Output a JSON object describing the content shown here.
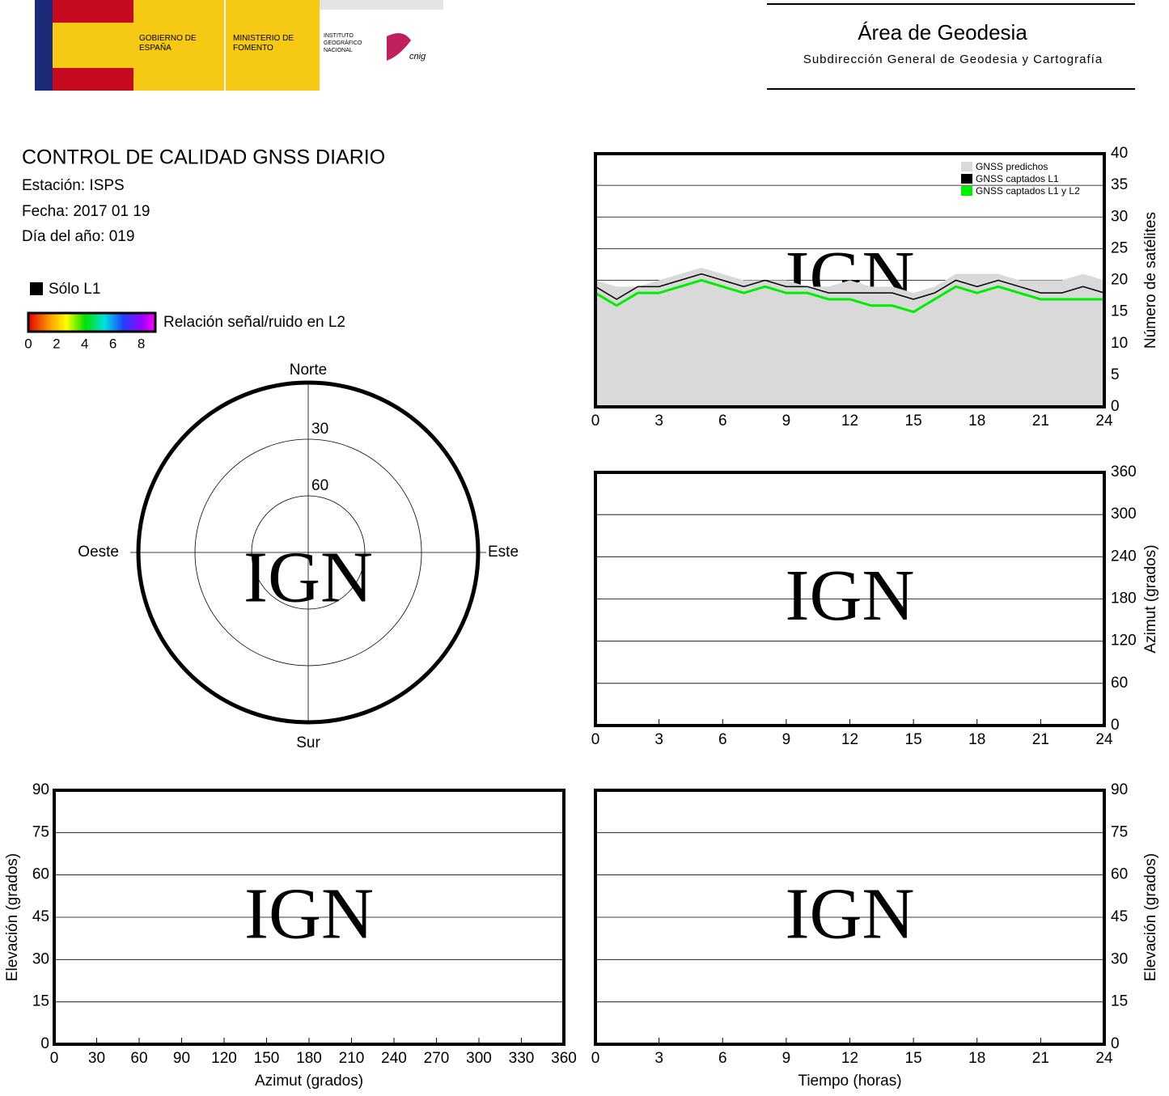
{
  "header": {
    "gov": "GOBIERNO DE ESPAÑA",
    "ministry": "MINISTERIO DE FOMENTO",
    "institute": "INSTITUTO GEOGRÁFICO NACIONAL",
    "cnig": "cnig",
    "area": "Área de Geodesia",
    "subarea": "Subdirección General de Geodesia y Cartografía"
  },
  "report": {
    "title": "CONTROL DE CALIDAD GNSS DIARIO",
    "station": "Estación: ISPS",
    "date": "Fecha: 2017 01 19",
    "doy": "Día del año: 019",
    "l1_only": "Sólo L1",
    "colorbar": {
      "label": "Relación señal/ruido en L2",
      "lim": [
        0,
        9
      ],
      "ticks": [
        0,
        2,
        4,
        6,
        8
      ]
    }
  },
  "chart_data": [
    {
      "type": "polar",
      "north": "Norte",
      "south": "Sur",
      "west": "Oeste",
      "east": "Este",
      "rlim": [
        90,
        0
      ],
      "rticks": [
        30,
        60
      ],
      "watermark": "IGN"
    },
    {
      "type": "line",
      "ylabel": "Número de satélites",
      "watermark": "IGN",
      "x": [
        0,
        1,
        2,
        3,
        4,
        5,
        6,
        7,
        8,
        9,
        10,
        11,
        12,
        13,
        14,
        15,
        16,
        17,
        18,
        19,
        20,
        21,
        22,
        23,
        24
      ],
      "xlim": [
        0,
        24
      ],
      "xticks": [
        0,
        3,
        6,
        9,
        12,
        15,
        18,
        21,
        24
      ],
      "ylim": [
        0,
        40
      ],
      "yticks": [
        0,
        5,
        10,
        15,
        20,
        25,
        30,
        35,
        40
      ],
      "grid": true,
      "series": [
        {
          "name": "GNSS predichos",
          "color": "#d9d9d9",
          "values": [
            20,
            19,
            19,
            20,
            21,
            22,
            21,
            20,
            20,
            20,
            19,
            19,
            20,
            19,
            19,
            18,
            19,
            21,
            21,
            21,
            20,
            20,
            20,
            21,
            20
          ]
        },
        {
          "name": "GNSS captados L1",
          "color": "#000000",
          "values": [
            19,
            17,
            19,
            19,
            20,
            21,
            20,
            19,
            20,
            19,
            19,
            18,
            18,
            18,
            18,
            17,
            18,
            20,
            19,
            20,
            19,
            18,
            18,
            19,
            18
          ]
        },
        {
          "name": "GNSS captados L1 y L2",
          "color": "#00ee00",
          "values": [
            18,
            16,
            18,
            18,
            19,
            20,
            19,
            18,
            19,
            18,
            18,
            17,
            17,
            16,
            16,
            15,
            17,
            19,
            18,
            19,
            18,
            17,
            17,
            17,
            17
          ]
        }
      ]
    },
    {
      "type": "track",
      "ylabel": "Azimut (grados)",
      "watermark": "IGN",
      "xlim": [
        0,
        24
      ],
      "xticks": [
        0,
        3,
        6,
        9,
        12,
        15,
        18,
        21,
        24
      ],
      "ylim": [
        0,
        360
      ],
      "yticks": [
        0,
        60,
        120,
        180,
        240,
        300,
        360
      ],
      "grid": true
    },
    {
      "type": "track",
      "xlabel": "Azimut (grados)",
      "ylabel": "Elevación (grados)",
      "watermark": "IGN",
      "xlim": [
        0,
        360
      ],
      "xticks": [
        0,
        30,
        60,
        90,
        120,
        150,
        180,
        210,
        240,
        270,
        300,
        330,
        360
      ],
      "ylim": [
        0,
        90
      ],
      "yticks": [
        0,
        15,
        30,
        45,
        60,
        75,
        90
      ],
      "grid": true,
      "yaxis_side": "left"
    },
    {
      "type": "track",
      "xlabel": "Tiempo (horas)",
      "ylabel": "Elevación (grados)",
      "watermark": "IGN",
      "xlim": [
        0,
        24
      ],
      "xticks": [
        0,
        3,
        6,
        9,
        12,
        15,
        18,
        21,
        24
      ],
      "ylim": [
        0,
        90
      ],
      "yticks": [
        0,
        15,
        30,
        45,
        60,
        75,
        90
      ],
      "grid": true
    }
  ]
}
